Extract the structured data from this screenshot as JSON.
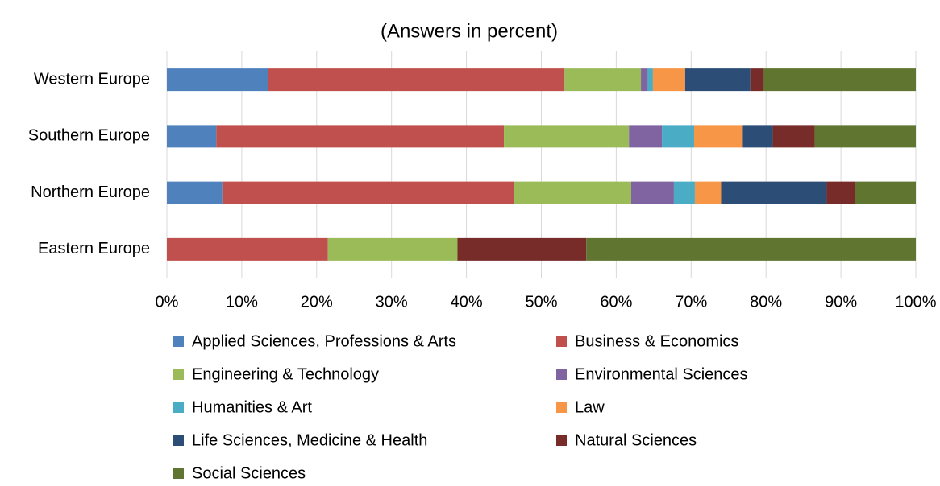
{
  "chart_data": {
    "type": "stacked_barh",
    "title": "(Answers in percent)",
    "categories": [
      "Western Europe",
      "Southern Europe",
      "Northern Europe",
      "Eastern Europe"
    ],
    "series": [
      {
        "name": "Applied Sciences, Professions & Arts",
        "color": "#4f81bd",
        "values": [
          13.5,
          6.6,
          7.4,
          0
        ]
      },
      {
        "name": "Business & Economics",
        "color": "#c0504d",
        "values": [
          39.6,
          38.4,
          38.9,
          21.5
        ]
      },
      {
        "name": "Engineering & Technology",
        "color": "#9bbb59",
        "values": [
          10.2,
          16.7,
          15.7,
          17.3
        ]
      },
      {
        "name": "Environmental Sciences",
        "color": "#8064a2",
        "values": [
          0.9,
          4.4,
          5.7,
          0
        ]
      },
      {
        "name": "Humanities & Art",
        "color": "#4bacc6",
        "values": [
          0.7,
          4.3,
          2.8,
          0
        ]
      },
      {
        "name": "Law",
        "color": "#f79646",
        "values": [
          4.3,
          6.5,
          3.5,
          0
        ]
      },
      {
        "name": "Life Sciences, Medicine & Health",
        "color": "#2c4d75",
        "values": [
          8.7,
          4.0,
          14.1,
          0
        ]
      },
      {
        "name": "Natural Sciences",
        "color": "#772c2a",
        "values": [
          1.8,
          5.6,
          3.8,
          17.2
        ]
      },
      {
        "name": "Social Sciences",
        "color": "#5f7530",
        "values": [
          20.3,
          13.5,
          8.1,
          44.0
        ]
      }
    ],
    "xlim": [
      0,
      100
    ],
    "xticks": [
      {
        "value": 0,
        "label": "0%"
      },
      {
        "value": 10,
        "label": "10%"
      },
      {
        "value": 20,
        "label": "20%"
      },
      {
        "value": 30,
        "label": "30%"
      },
      {
        "value": 40,
        "label": "40%"
      },
      {
        "value": 50,
        "label": "50%"
      },
      {
        "value": 60,
        "label": "60%"
      },
      {
        "value": 70,
        "label": "70%"
      },
      {
        "value": 80,
        "label": "80%"
      },
      {
        "value": 90,
        "label": "90%"
      },
      {
        "value": 100,
        "label": "100%"
      }
    ],
    "grid": true,
    "legend": "bottom"
  }
}
